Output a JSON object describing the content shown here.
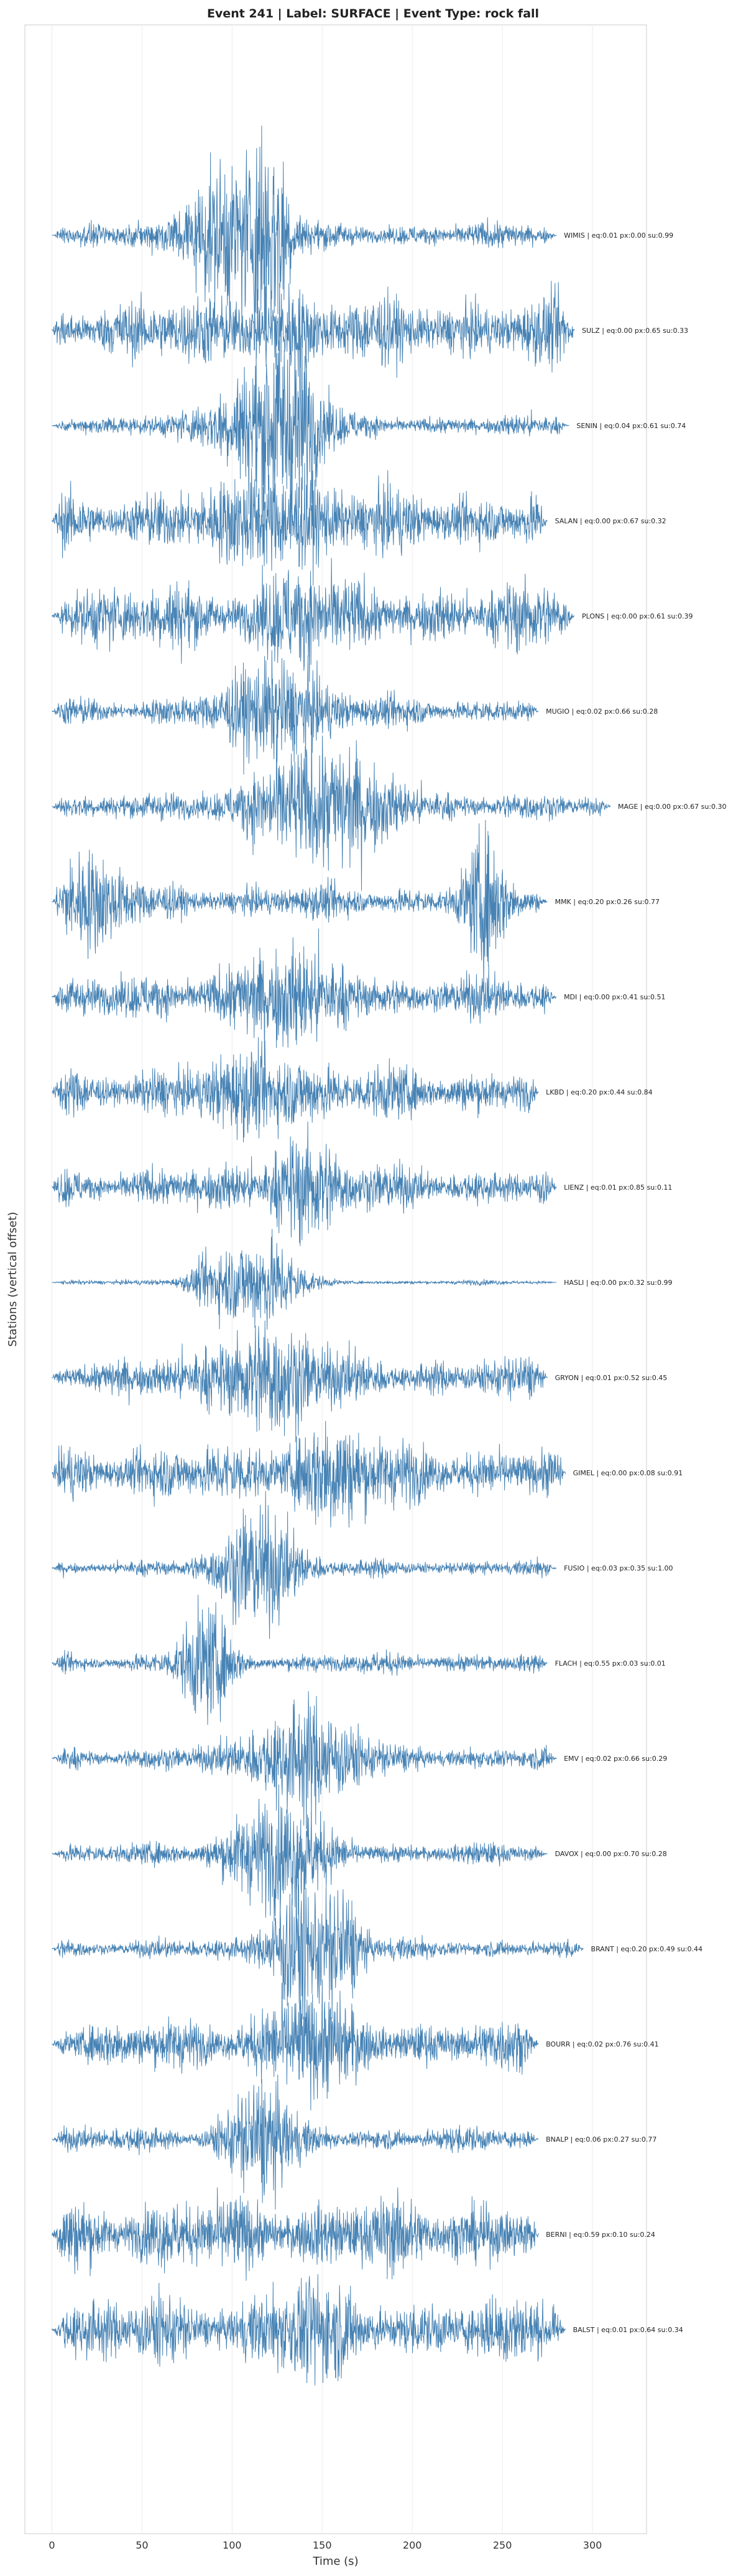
{
  "chart_data": {
    "type": "line",
    "title": "Event 241 | Label: SURFACE | Event Type: rock fall",
    "xlabel": "Time (s)",
    "ylabel": "Stations (vertical offset)",
    "xlim": [
      -15,
      330
    ],
    "xticks": [
      0,
      50,
      100,
      150,
      200,
      250,
      300
    ],
    "grid": "vertical",
    "color": "#4682b4",
    "stations": [
      {
        "label": "WIMIS | eq:0.01 px:0.00 su:0.99",
        "end": 280,
        "amp": 0.3,
        "bursts": [
          {
            "t": 95,
            "w": 15,
            "a": 1.6
          },
          {
            "t": 121,
            "w": 8,
            "a": 2.3
          }
        ]
      },
      {
        "label": "SULZ | eq:0.00 px:0.65 su:0.33",
        "end": 290,
        "amp": 0.8,
        "bursts": [
          {
            "t": 125,
            "w": 12,
            "a": 0.6
          }
        ]
      },
      {
        "label": "SENIN | eq:0.04 px:0.61 su:0.74",
        "end": 287,
        "amp": 0.25,
        "bursts": [
          {
            "t": 120,
            "w": 20,
            "a": 1.6
          },
          {
            "t": 135,
            "w": 8,
            "a": 1.2
          }
        ]
      },
      {
        "label": "SALAN | eq:0.00 px:0.67 su:0.32",
        "end": 275,
        "amp": 0.75,
        "bursts": [
          {
            "t": 125,
            "w": 18,
            "a": 0.8
          }
        ]
      },
      {
        "label": "PLONS | eq:0.00 px:0.61 su:0.39",
        "end": 290,
        "amp": 0.8,
        "bursts": [
          {
            "t": 135,
            "w": 12,
            "a": 0.7
          }
        ]
      },
      {
        "label": "MUGIO | eq:0.02 px:0.66 su:0.28",
        "end": 270,
        "amp": 0.35,
        "bursts": [
          {
            "t": 125,
            "w": 20,
            "a": 1.0
          }
        ]
      },
      {
        "label": "MAGE | eq:0.00 px:0.67 su:0.30",
        "end": 310,
        "amp": 0.3,
        "bursts": [
          {
            "t": 150,
            "w": 30,
            "a": 1.3
          }
        ]
      },
      {
        "label": "MMK | eq:0.20 px:0.26 su:0.77",
        "end": 275,
        "amp": 0.4,
        "bursts": [
          {
            "t": 20,
            "w": 15,
            "a": 0.9
          },
          {
            "t": 240,
            "w": 8,
            "a": 1.3
          }
        ]
      },
      {
        "label": "MDI | eq:0.00 px:0.41 su:0.51",
        "end": 280,
        "amp": 0.5,
        "bursts": [
          {
            "t": 130,
            "w": 25,
            "a": 0.8
          }
        ]
      },
      {
        "label": "LKBD | eq:0.20 px:0.44 su:0.84",
        "end": 270,
        "amp": 0.6,
        "bursts": [
          {
            "t": 120,
            "w": 20,
            "a": 0.6
          }
        ]
      },
      {
        "label": "LIENZ | eq:0.01 px:0.85 su:0.11",
        "end": 280,
        "amp": 0.5,
        "bursts": [
          {
            "t": 140,
            "w": 15,
            "a": 1.0
          }
        ]
      },
      {
        "label": "HASLI | eq:0.00 px:0.32 su:0.99",
        "end": 280,
        "amp": 0.06,
        "bursts": [
          {
            "t": 90,
            "w": 10,
            "a": 0.6
          },
          {
            "t": 118,
            "w": 14,
            "a": 1.1
          }
        ]
      },
      {
        "label": "GRYON | eq:0.01 px:0.52 su:0.45",
        "end": 275,
        "amp": 0.5,
        "bursts": [
          {
            "t": 120,
            "w": 20,
            "a": 1.1
          }
        ]
      },
      {
        "label": "GIMEL | eq:0.00 px:0.08 su:0.91",
        "end": 285,
        "amp": 0.7,
        "bursts": [
          {
            "t": 155,
            "w": 15,
            "a": 0.9
          }
        ]
      },
      {
        "label": "FUSIO | eq:0.03 px:0.35 su:1.00",
        "end": 280,
        "amp": 0.2,
        "bursts": [
          {
            "t": 115,
            "w": 15,
            "a": 1.4
          }
        ]
      },
      {
        "label": "FLACH | eq:0.55 px:0.03 su:0.01",
        "end": 275,
        "amp": 0.25,
        "bursts": [
          {
            "t": 85,
            "w": 10,
            "a": 1.2
          }
        ]
      },
      {
        "label": "EMV | eq:0.02 px:0.66 su:0.29",
        "end": 280,
        "amp": 0.3,
        "bursts": [
          {
            "t": 140,
            "w": 20,
            "a": 1.2
          }
        ]
      },
      {
        "label": "DAVOX | eq:0.00 px:0.70 su:0.28",
        "end": 275,
        "amp": 0.25,
        "bursts": [
          {
            "t": 125,
            "w": 20,
            "a": 1.2
          }
        ]
      },
      {
        "label": "BRANT | eq:0.20 px:0.49 su:0.44",
        "end": 295,
        "amp": 0.25,
        "bursts": [
          {
            "t": 135,
            "w": 10,
            "a": 1.6
          },
          {
            "t": 160,
            "w": 8,
            "a": 1.4
          }
        ]
      },
      {
        "label": "BOURR | eq:0.02 px:0.76 su:0.41",
        "end": 270,
        "amp": 0.6,
        "bursts": [
          {
            "t": 140,
            "w": 18,
            "a": 0.8
          }
        ]
      },
      {
        "label": "BNALP | eq:0.06 px:0.27 su:0.77",
        "end": 270,
        "amp": 0.3,
        "bursts": [
          {
            "t": 115,
            "w": 12,
            "a": 1.3
          }
        ]
      },
      {
        "label": "BERNI | eq:0.59 px:0.10 su:0.24",
        "end": 270,
        "amp": 0.9,
        "bursts": []
      },
      {
        "label": "BALST | eq:0.01 px:0.64 su:0.34",
        "end": 285,
        "amp": 0.8,
        "bursts": [
          {
            "t": 140,
            "w": 15,
            "a": 0.6
          }
        ]
      }
    ]
  }
}
